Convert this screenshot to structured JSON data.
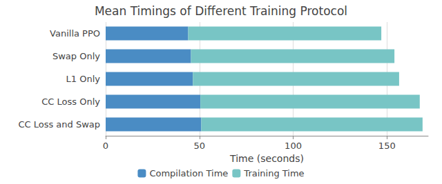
{
  "chart_data": {
    "type": "bar",
    "orientation": "horizontal",
    "stacked": true,
    "title": "Mean Timings of Different Training Protocol",
    "x_label": "Time (seconds)",
    "categories": [
      "Vanilla PPO",
      "Swap Only",
      "L1 Only",
      "CC Loss Only",
      "CC Loss and Swap"
    ],
    "series": [
      {
        "name": "Compilation Time",
        "color": "#4a8cc4",
        "values": [
          44,
          45.5,
          46.5,
          50.5,
          51
        ]
      },
      {
        "name": "Training Time",
        "color": "#78c5c5",
        "values": [
          103,
          108.5,
          110,
          117,
          118
        ]
      }
    ],
    "xlim": [
      0,
      172
    ],
    "xticks": [
      0,
      50,
      100,
      150
    ],
    "grid": true,
    "legend": "bottom"
  }
}
